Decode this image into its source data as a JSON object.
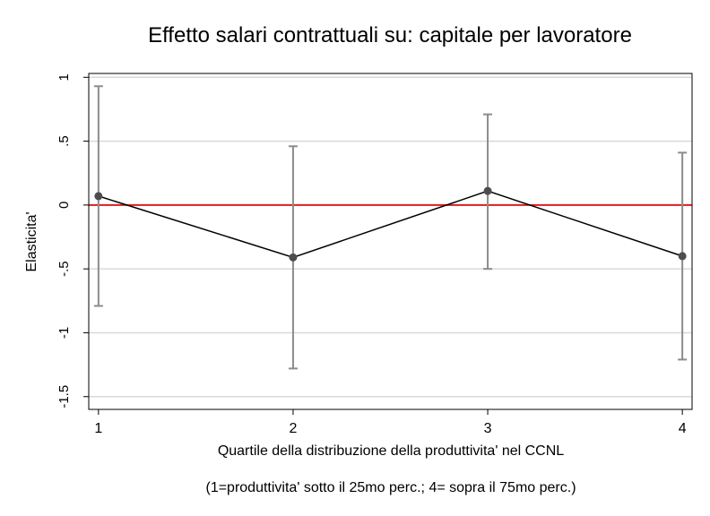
{
  "chart_data": {
    "type": "line",
    "title": "Effetto salari contrattuali su: capitale per lavoratore",
    "xlabel": "Quartile della distribuzione della produttivita' nel CCNL",
    "note": "(1=produttivita' sotto il 25mo perc.;  4= sopra il 75mo perc.)",
    "ylabel": "Elasticita'",
    "x": [
      1,
      2,
      3,
      4
    ],
    "x_tick_labels": [
      "1",
      "2",
      "3",
      "4"
    ],
    "y_ticks": [
      1,
      0.5,
      0,
      -0.5,
      -1,
      -1.5
    ],
    "y_tick_labels": [
      "1",
      ".5",
      "0",
      "-.5",
      "-1",
      "-1.5"
    ],
    "xlim": [
      0.95,
      4.05
    ],
    "ylim": [
      -1.6,
      1.03
    ],
    "grid": true,
    "reference_line": {
      "y": 0,
      "color": "#e31a1c"
    },
    "series": [
      {
        "values": [
          0.07,
          -0.41,
          0.11,
          -0.4
        ],
        "ci_low": [
          -0.79,
          -1.28,
          -0.5,
          -1.21
        ],
        "ci_high": [
          0.93,
          0.46,
          0.71,
          0.41
        ],
        "line_color": "#000000",
        "marker_color": "#4d4d4d",
        "errorbar_color": "#8c8c8c"
      }
    ]
  }
}
